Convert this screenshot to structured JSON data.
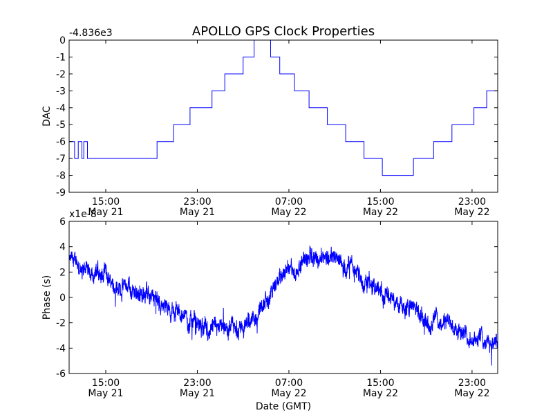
{
  "chart_data": [
    {
      "type": "line",
      "title": "APOLLO GPS Clock Properties",
      "ylabel": "DAC",
      "offset_label": "-4.836e3",
      "ylim": [
        -9,
        0
      ],
      "xlim_hours": [
        10.0,
        33.4
      ],
      "y_ticks": [
        0,
        -1,
        -2,
        -3,
        -4,
        -5,
        -6,
        -7,
        -8,
        -9
      ],
      "y_tick_labels": [
        "0",
        "-1",
        "-2",
        "-3",
        "-4",
        "-5",
        "-6",
        "-7",
        "-8",
        "-9"
      ],
      "x_ticks": [
        {
          "hours": 12.0,
          "time": "15:00",
          "date": "May 21"
        },
        {
          "hours": 17.0,
          "time": "23:00",
          "date": "May 21"
        },
        {
          "hours": 22.0,
          "time": "07:00",
          "date": "May 22"
        },
        {
          "hours": 27.0,
          "time": "15:00",
          "date": "May 22"
        },
        {
          "hours": 32.0,
          "time": "23:00",
          "date": "May 22"
        }
      ],
      "series": [
        {
          "name": "DAC",
          "color": "#0000ff",
          "points": [
            [
              10.0,
              -6
            ],
            [
              10.3,
              -7
            ],
            [
              10.5,
              -6
            ],
            [
              10.7,
              -7
            ],
            [
              10.8,
              -6
            ],
            [
              11.0,
              -7
            ],
            [
              12.0,
              -7
            ],
            [
              14.4,
              -7
            ],
            [
              14.8,
              -6
            ],
            [
              15.5,
              -6
            ],
            [
              15.7,
              -5
            ],
            [
              16.3,
              -5
            ],
            [
              16.6,
              -4
            ],
            [
              17.4,
              -4
            ],
            [
              17.8,
              -3
            ],
            [
              18.3,
              -3
            ],
            [
              18.5,
              -2
            ],
            [
              19.2,
              -2
            ],
            [
              19.5,
              -1
            ],
            [
              19.9,
              -1
            ],
            [
              20.1,
              0
            ],
            [
              20.8,
              0
            ],
            [
              21.0,
              -1
            ],
            [
              21.3,
              -1
            ],
            [
              21.5,
              -2
            ],
            [
              22.0,
              -2
            ],
            [
              22.3,
              -3
            ],
            [
              22.8,
              -3
            ],
            [
              23.1,
              -4
            ],
            [
              23.8,
              -4
            ],
            [
              24.1,
              -5
            ],
            [
              24.8,
              -5
            ],
            [
              25.1,
              -6
            ],
            [
              25.8,
              -6
            ],
            [
              26.1,
              -7
            ],
            [
              26.8,
              -7
            ],
            [
              27.1,
              -8
            ],
            [
              28.6,
              -8
            ],
            [
              28.8,
              -7
            ],
            [
              29.6,
              -7
            ],
            [
              29.9,
              -6
            ],
            [
              30.6,
              -6
            ],
            [
              30.9,
              -5
            ],
            [
              31.8,
              -5
            ],
            [
              32.1,
              -4
            ],
            [
              32.6,
              -4
            ],
            [
              32.8,
              -3
            ],
            [
              33.4,
              -3
            ]
          ]
        }
      ]
    },
    {
      "type": "line",
      "ylabel": "Phase (s)",
      "xlabel": "Date (GMT)",
      "offset_label": "x1e-8",
      "ylim": [
        -6,
        6
      ],
      "xlim_hours": [
        10.0,
        33.4
      ],
      "y_ticks": [
        6,
        4,
        2,
        0,
        -2,
        -4,
        -6
      ],
      "y_tick_labels": [
        "6",
        "4",
        "2",
        "0",
        "-2",
        "-4",
        "-6"
      ],
      "x_ticks": [
        {
          "hours": 12.0,
          "time": "15:00",
          "date": "May 21"
        },
        {
          "hours": 17.0,
          "time": "23:00",
          "date": "May 21"
        },
        {
          "hours": 22.0,
          "time": "07:00",
          "date": "May 22"
        },
        {
          "hours": 27.0,
          "time": "15:00",
          "date": "May 22"
        },
        {
          "hours": 32.0,
          "time": "23:00",
          "date": "May 22"
        }
      ],
      "series": [
        {
          "name": "Phase",
          "color": "#0000ff",
          "trend": [
            [
              10.0,
              2.8
            ],
            [
              11.5,
              2.0
            ],
            [
              13.0,
              1.0
            ],
            [
              14.5,
              0.0
            ],
            [
              16.0,
              -1.2
            ],
            [
              17.5,
              -2.8
            ],
            [
              18.5,
              -3.0
            ],
            [
              19.5,
              -2.5
            ],
            [
              20.5,
              -1.0
            ],
            [
              21.0,
              0.5
            ],
            [
              21.5,
              1.5
            ],
            [
              22.5,
              2.5
            ],
            [
              23.5,
              3.2
            ],
            [
              24.5,
              3.3
            ],
            [
              25.0,
              2.8
            ],
            [
              26.0,
              1.5
            ],
            [
              27.5,
              0.0
            ],
            [
              29.0,
              -1.0
            ],
            [
              30.5,
              -2.0
            ],
            [
              31.5,
              -2.5
            ],
            [
              32.5,
              -3.2
            ],
            [
              33.4,
              -3.5
            ]
          ]
        }
      ]
    }
  ]
}
